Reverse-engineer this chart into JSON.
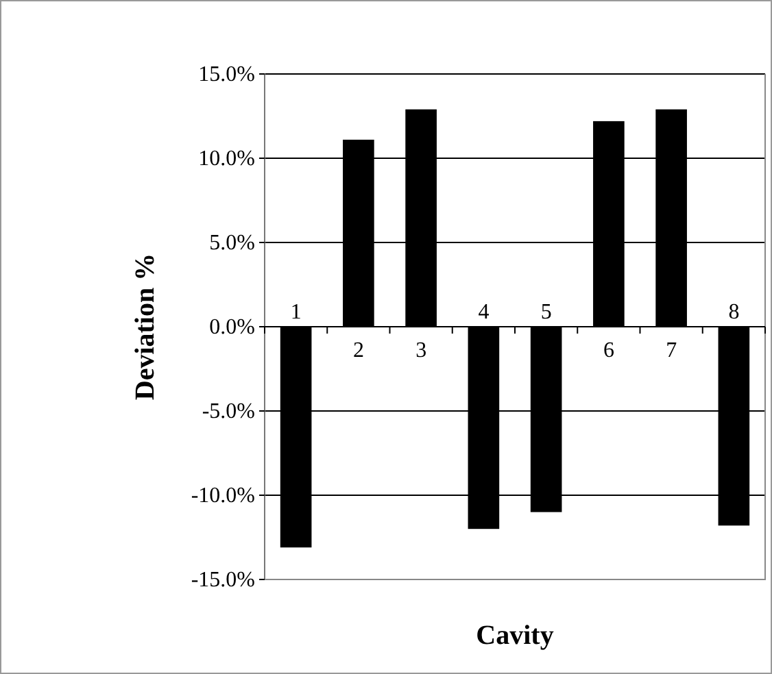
{
  "chart_data": {
    "type": "bar",
    "xlabel": "Cavity",
    "ylabel": "Deviation %",
    "categories": [
      "1",
      "2",
      "3",
      "4",
      "5",
      "6",
      "7",
      "8"
    ],
    "values": [
      -13.1,
      11.1,
      12.9,
      -12.0,
      -11.0,
      12.2,
      12.9,
      -11.8
    ],
    "color": "#000000",
    "ylim": [
      -15,
      15
    ],
    "yticks": [
      {
        "value": -15,
        "label": "-15.0%"
      },
      {
        "value": -10,
        "label": "-10.0%"
      },
      {
        "value": -5,
        "label": "-5.0%"
      },
      {
        "value": 0,
        "label": "0.0%"
      },
      {
        "value": 5,
        "label": "5.0%"
      },
      {
        "value": 10,
        "label": "10.0%"
      },
      {
        "value": 15,
        "label": "15.0%"
      }
    ],
    "grid": "y"
  }
}
